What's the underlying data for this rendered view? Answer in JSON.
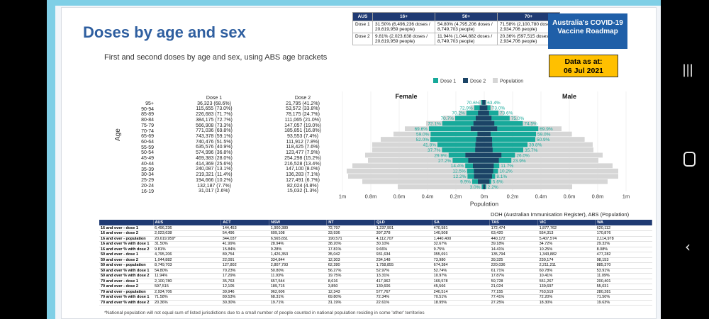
{
  "title": "Doses by age and sex",
  "subtitle": "First and second doses by age and sex, using ABS age brackets",
  "roadmap": {
    "line1": "Australia's COVID-19",
    "line2": "Vaccine Roadmap"
  },
  "as_at": {
    "line1": "Data as at:",
    "line2": "06 Jul 2021"
  },
  "summary": {
    "headers": [
      "AUS",
      "16+",
      "50+",
      "70+"
    ],
    "rows": [
      {
        "label": "Dose 1",
        "cells": [
          "31.50% (6,496,236 doses / 20,619,959 people)",
          "54.80% (4,795,206 doses / 8,749,703 people)",
          "71.58% (2,100,780 doses / 2,934,706 people)"
        ]
      },
      {
        "label": "Dose 2",
        "cells": [
          "9.81% (2,023,638 doses / 20,619,959 people)",
          "11.94% (1,044,882 doses / 8,749,703 people)",
          "20.36% (597,515 doses / 2,934,706 people)"
        ]
      }
    ]
  },
  "age_axis_label": "Age",
  "dose1_header": "Dose 1",
  "dose2_header": "Dose 2",
  "age_table": [
    {
      "age": "95+",
      "d1": "36,323 (68.6%)",
      "d2": "21,795 (41.2%)"
    },
    {
      "age": "90-94",
      "d1": "115,655 (73.0%)",
      "d2": "53,572 (33.8%)"
    },
    {
      "age": "85-89",
      "d1": "226,683 (71.7%)",
      "d2": "78,175 (24.7%)"
    },
    {
      "age": "80-84",
      "d1": "384,175 (72.7%)",
      "d2": "111,065 (21.0%)"
    },
    {
      "age": "75-79",
      "d1": "566,908 (73.3%)",
      "d2": "147,057 (19.0%)"
    },
    {
      "age": "70-74",
      "d1": "771,036 (69.8%)",
      "d2": "185,851 (16.8%)"
    },
    {
      "age": "65-69",
      "d1": "743,378 (59.1%)",
      "d2": "93,553 (7.4%)"
    },
    {
      "age": "60-64",
      "d1": "740,476 (51.5%)",
      "d2": "111,912 (7.8%)"
    },
    {
      "age": "55-59",
      "d1": "635,576 (40.9%)",
      "d2": "118,425 (7.6%)"
    },
    {
      "age": "50-54",
      "d1": "574,996 (36.8%)",
      "d2": "123,477 (7.9%)"
    },
    {
      "age": "45-49",
      "d1": "469,383 (28.0%)",
      "d2": "254,298 (15.2%)"
    },
    {
      "age": "40-44",
      "d1": "414,369 (25.6%)",
      "d2": "216,528 (13.4%)"
    },
    {
      "age": "35-39",
      "d1": "240,087 (13.1%)",
      "d2": "147,100 (8.0%)"
    },
    {
      "age": "30-34",
      "d1": "219,321 (11.4%)",
      "d2": "136,283 (7.1%)"
    },
    {
      "age": "25-29",
      "d1": "194,666 (10.2%)",
      "d2": "127,491 (6.7%)"
    },
    {
      "age": "20-24",
      "d1": "132,187 (7.7%)",
      "d2": "82,024 (4.8%)"
    },
    {
      "age": "16-19",
      "d1": "31,017 (2.6%)",
      "d2": "15,032 (1.3%)"
    }
  ],
  "chart_data": {
    "type": "bar",
    "orientation": "horizontal-pyramid",
    "panels": [
      "Female",
      "Male"
    ],
    "xlabel": "Population",
    "xticks": [
      "1m",
      "0.8m",
      "0.6m",
      "0.4m",
      "0.2m",
      "0m",
      "0.2m",
      "0.4m",
      "0.6m",
      "0.8m",
      "1m"
    ],
    "xlim": [
      -1000000,
      1000000
    ],
    "legend": [
      "Dose 1",
      "Dose 2",
      "Population"
    ],
    "legend_position": "top",
    "colors": {
      "dose1": "#17a99a",
      "dose2": "#1b4466",
      "population": "#d6d6d6"
    },
    "categories": [
      "95+",
      "90-94",
      "85-89",
      "80-84",
      "75-79",
      "70-74",
      "65-69",
      "60-64",
      "55-59",
      "50-54",
      "45-49",
      "40-44",
      "35-39",
      "30-34",
      "25-29",
      "20-24",
      "16-19"
    ],
    "female": {
      "population": [
        35000,
        98000,
        180000,
        290000,
        410000,
        560000,
        640000,
        730000,
        790000,
        790000,
        840000,
        820000,
        930000,
        970000,
        960000,
        860000,
        610000
      ],
      "dose1": [
        22000,
        71000,
        126000,
        205000,
        296000,
        390000,
        378000,
        380000,
        330000,
        298000,
        251000,
        223000,
        134000,
        121000,
        118000,
        85000,
        18000
      ],
      "dose2": [
        14000,
        32000,
        44000,
        60000,
        76000,
        95000,
        48000,
        57000,
        62000,
        64000,
        133000,
        113000,
        80000,
        73000,
        72000,
        45000,
        8000
      ],
      "labels": [
        "70.6%",
        "72.9%",
        "70.2%",
        "70.7%",
        "72.1%",
        "69.6%",
        "59.0%",
        "52.0%",
        "41.8%",
        "37.7%",
        "29.9%",
        "27.2%",
        "14.4%",
        "12.5%",
        "12.2%",
        "9.9%",
        "3.0%"
      ]
    },
    "male": {
      "population": [
        18000,
        60000,
        136000,
        238000,
        365000,
        545000,
        618000,
        708000,
        765000,
        770000,
        835000,
        805000,
        905000,
        945000,
        945000,
        870000,
        620000
      ],
      "dose1": [
        11000,
        44000,
        100000,
        179000,
        272000,
        381000,
        365000,
        360000,
        305000,
        275000,
        217000,
        191000,
        106000,
        97000,
        77000,
        49000,
        14000
      ],
      "dose2": [
        8000,
        22000,
        34000,
        51000,
        71000,
        91000,
        45000,
        55000,
        56000,
        59000,
        121000,
        103000,
        67000,
        63000,
        55000,
        37000,
        7000
      ],
      "labels": [
        "63.4%",
        "73.0%",
        "73.6%",
        "75.0%",
        "74.5%",
        "69.9%",
        "59.0%",
        "50.9%",
        "39.8%",
        "35.7%",
        "26.0%",
        "23.9%",
        "11.7%",
        "10.2%",
        "8.1%",
        "5.6%",
        "2.2%"
      ]
    }
  },
  "source": "DOH (Australian Immunisation Register), ABS (Population)",
  "big_table": {
    "columns": [
      "",
      "AUS",
      "ACT",
      "NSW",
      "NT",
      "QLD",
      "SA",
      "TAS",
      "VIC",
      "WA"
    ],
    "rows": [
      [
        "16 and over - dose 1",
        "6,496,236",
        "144,453",
        "1,900,389",
        "72,797",
        "1,237,991",
        "470,581",
        "172,474",
        "1,877,762",
        "620,112"
      ],
      [
        "16 and over - dose 2",
        "2,023,638",
        "54,496",
        "609,108",
        "33,936",
        "397,278",
        "140,508",
        "63,420",
        "554,313",
        "170,876"
      ],
      [
        "16 and over - population",
        "20,619,959*",
        "344,037",
        "6,565,651",
        "190,571",
        "4,112,707",
        "1,440,400",
        "440,172",
        "5,407,574",
        "2,114,978"
      ],
      [
        "16 and over % with dose 1",
        "31.50%",
        "41.99%",
        "28.94%",
        "38.20%",
        "30.10%",
        "32.67%",
        "39.18%",
        "34.72%",
        "29.32%"
      ],
      [
        "16 and over % with dose 2",
        "9.81%",
        "15.84%",
        "9.28%",
        "17.81%",
        "9.66%",
        "9.75%",
        "14.41%",
        "10.25%",
        "8.08%"
      ],
      [
        "50 and over - dose 1",
        "4,795,206",
        "89,754",
        "1,426,353",
        "35,042",
        "931,634",
        "355,691",
        "135,794",
        "1,343,882",
        "477,282"
      ],
      [
        "50 and over - dose 2",
        "1,044,882",
        "22,091",
        "334,844",
        "12,303",
        "234,148",
        "73,980",
        "39,325",
        "230,174",
        "98,153"
      ],
      [
        "50 and over - population",
        "8,749,703",
        "127,802",
        "2,807,793",
        "62,280",
        "1,758,855",
        "674,384",
        "220,036",
        "2,211,211",
        "885,370"
      ],
      [
        "50 and over % with dose 1",
        "54.80%",
        "70.23%",
        "50.80%",
        "56.27%",
        "52.97%",
        "52.74%",
        "61.71%",
        "60.78%",
        "53.91%"
      ],
      [
        "50 and over % with dose 2",
        "11.94%",
        "17.29%",
        "11.93%",
        "19.75%",
        "13.31%",
        "10.97%",
        "17.87%",
        "10.41%",
        "11.09%"
      ],
      [
        "70 and over - dose 1",
        "2,100,780",
        "35,763",
        "657,544",
        "8,616",
        "417,962",
        "169,578",
        "59,728",
        "551,267",
        "200,401"
      ],
      [
        "70 and over - dose 2",
        "597,515",
        "12,105",
        "189,715",
        "3,850",
        "130,606",
        "45,566",
        "21,024",
        "139,697",
        "55,031"
      ],
      [
        "70 and over - population",
        "2,934,706",
        "39,946",
        "962,606",
        "12,343",
        "577,767",
        "240,514",
        "77,155",
        "763,519",
        "280,281"
      ],
      [
        "70 and over % with dose 1",
        "71.58%",
        "89.53%",
        "68.31%",
        "69.80%",
        "72.34%",
        "70.51%",
        "77.41%",
        "72.20%",
        "71.50%"
      ],
      [
        "70 and over % with dose 2",
        "20.36%",
        "30.30%",
        "19.71%",
        "31.19%",
        "22.61%",
        "18.95%",
        "27.25%",
        "18.30%",
        "19.63%"
      ]
    ]
  },
  "footnote": "*National population will not equal sum of listed jurisdictions due to a small number of people counted in national population residing in some 'other' territories",
  "nav": {
    "recents": "recents-icon",
    "home": "home-icon",
    "back": "back-icon"
  }
}
